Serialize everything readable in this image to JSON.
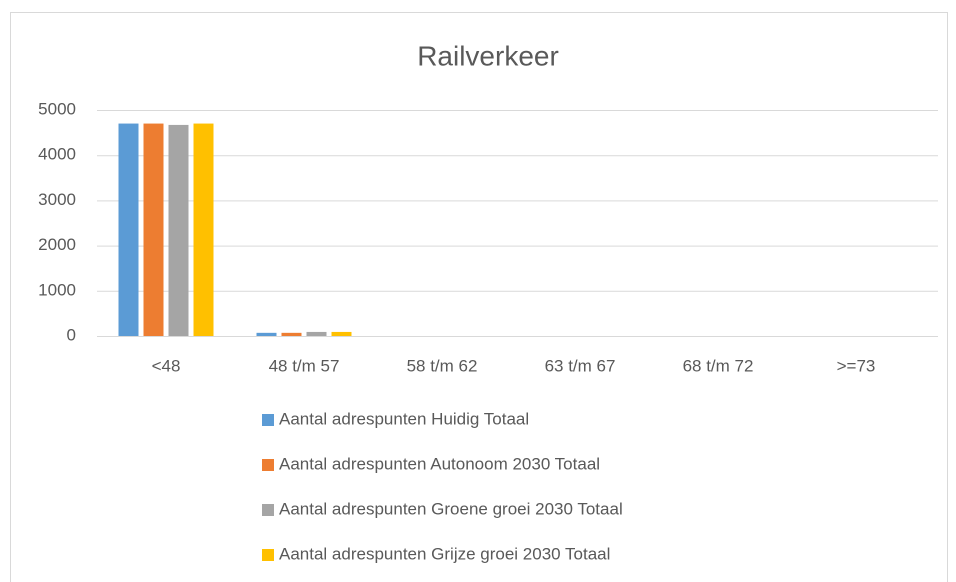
{
  "chart_data": {
    "type": "bar",
    "title": "Railverkeer",
    "categories": [
      "<48",
      "48 t/m 57",
      "58 t/m 62",
      "63 t/m 67",
      "68 t/m 72",
      ">=73"
    ],
    "series": [
      {
        "name": "Aantal adrespunten Huidig Totaal",
        "color": "#5b9bd5",
        "values": [
          4700,
          70,
          0,
          0,
          0,
          0
        ]
      },
      {
        "name": "Aantal adrespunten Autonoom 2030 Totaal",
        "color": "#ed7d31",
        "values": [
          4700,
          70,
          0,
          0,
          0,
          0
        ]
      },
      {
        "name": "Aantal adrespunten Groene groei 2030 Totaal",
        "color": "#a5a5a5",
        "values": [
          4670,
          90,
          0,
          0,
          0,
          0
        ]
      },
      {
        "name": "Aantal adrespunten Grijze groei 2030 Totaal",
        "color": "#ffc000",
        "values": [
          4700,
          90,
          0,
          0,
          0,
          0
        ]
      }
    ],
    "ylim": [
      0,
      5000
    ],
    "yticks": [
      0,
      1000,
      2000,
      3000,
      4000,
      5000
    ],
    "grid": true,
    "legend": "bottom"
  }
}
